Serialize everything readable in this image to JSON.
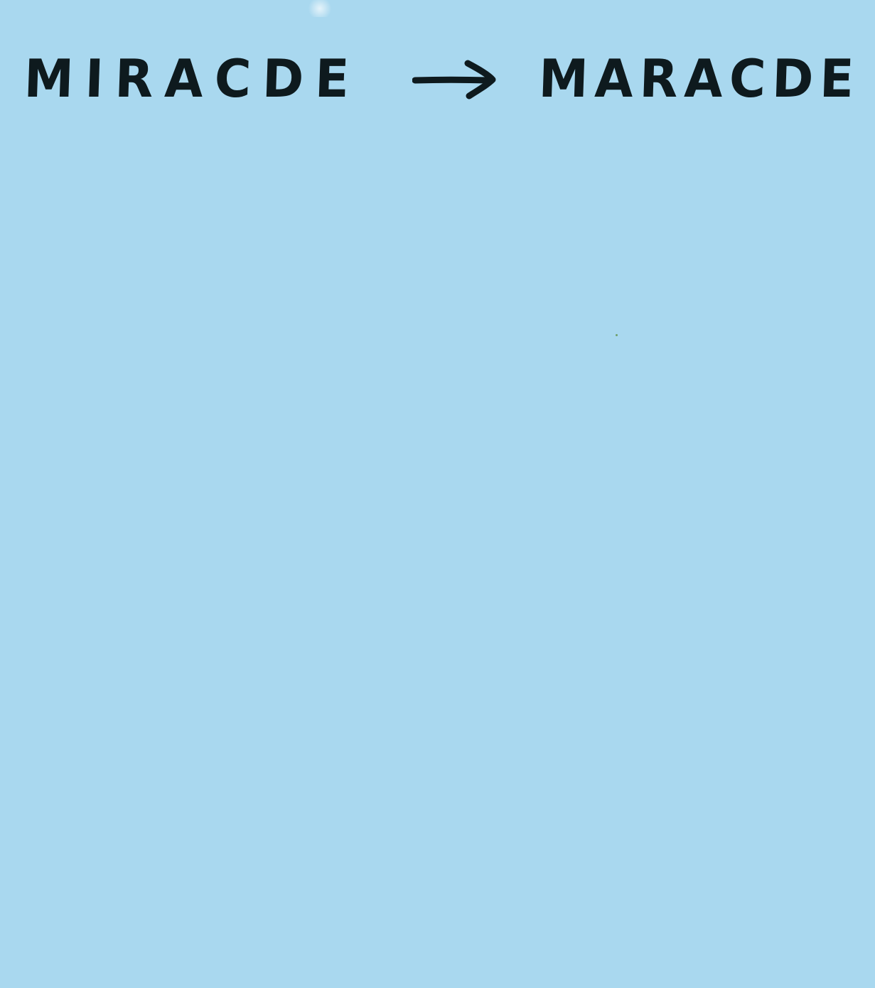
{
  "note": {
    "background_color": "#a9d8ef",
    "ink_color": "#0e1a1e",
    "left_word": "MIRACDE",
    "arrow_icon": "right-arrow-icon",
    "right_word": "MARACDE"
  }
}
